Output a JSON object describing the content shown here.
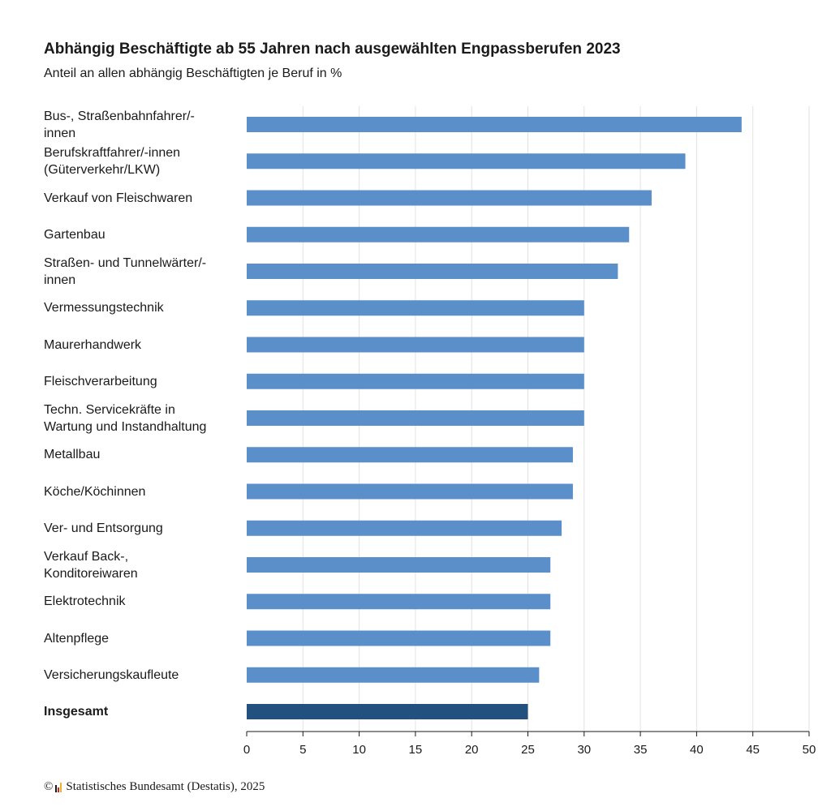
{
  "header": {
    "title": "Abhängig Beschäftigte ab 55 Jahren nach ausgewählten Engpassberufen 2023",
    "subtitle": "Anteil an allen abhängig Beschäftigten je Beruf in %"
  },
  "footer": {
    "copyright": "©",
    "source": "Statistisches Bundesamt (Destatis), 2025"
  },
  "colors": {
    "bar": "#5b8fc9",
    "highlight": "#22507f",
    "grid": "#e2e2e2",
    "axis": "#1a1a1a",
    "logo": [
      "#1a1a1a",
      "#d62020",
      "#e8b52a"
    ]
  },
  "chart_data": {
    "type": "bar",
    "orientation": "horizontal",
    "title": "Abhängig Beschäftigte ab 55 Jahren nach ausgewählten Engpassberufen 2023",
    "subtitle": "Anteil an allen abhängig Beschäftigten je Beruf in %",
    "categories": [
      [
        "Bus-, Straßenbahnfahrer/-",
        "innen"
      ],
      [
        "Berufskraftfahrer/-innen",
        "(Güterverkehr/LKW)"
      ],
      [
        "Verkauf von Fleischwaren"
      ],
      [
        "Gartenbau"
      ],
      [
        "Straßen- und Tunnelwärter/-",
        "innen"
      ],
      [
        "Vermessungstechnik"
      ],
      [
        "Maurerhandwerk"
      ],
      [
        "Fleischverarbeitung"
      ],
      [
        "Techn. Servicekräfte in",
        "Wartung und Instandhaltung"
      ],
      [
        "Metallbau"
      ],
      [
        "Köche/Köchinnen"
      ],
      [
        "Ver- und Entsorgung"
      ],
      [
        "Verkauf Back-,",
        "Konditoreiwaren"
      ],
      [
        "Elektrotechnik"
      ],
      [
        "Altenpflege"
      ],
      [
        "Versicherungskaufleute"
      ],
      [
        "Insgesamt"
      ]
    ],
    "values": [
      44,
      39,
      36,
      34,
      33,
      30,
      30,
      30,
      30,
      29,
      29,
      28,
      27,
      27,
      27,
      26,
      25
    ],
    "highlight": [
      "Insgesamt"
    ],
    "xlim": [
      0,
      50
    ],
    "xticks": [
      0,
      5,
      10,
      15,
      20,
      25,
      30,
      35,
      40,
      45,
      50
    ],
    "grid": true,
    "legend": "none"
  }
}
